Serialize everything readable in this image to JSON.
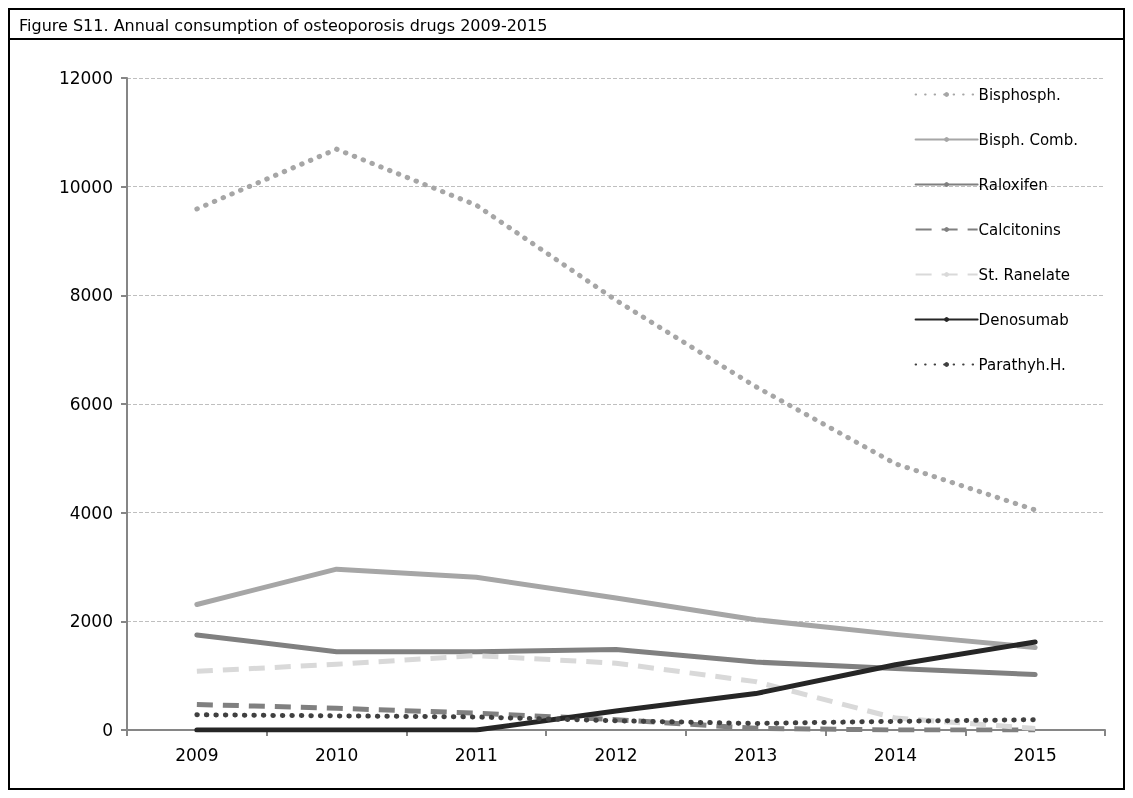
{
  "chart_data": {
    "type": "line",
    "title": "Figure S11. Annual consumption of osteoporosis drugs 2009-2015",
    "categories": [
      "2009",
      "2010",
      "2011",
      "2012",
      "2013",
      "2014",
      "2015"
    ],
    "series": [
      {
        "name": "Bisphosph.",
        "color": "#a6a6a6",
        "line_style": "dotted",
        "values": [
          9590,
          10690,
          9660,
          7910,
          6320,
          4900,
          4050
        ]
      },
      {
        "name": "Bisph. Comb.",
        "color": "#a6a6a6",
        "line_style": "solid",
        "values": [
          2310,
          2960,
          2810,
          2430,
          2030,
          1760,
          1520
        ]
      },
      {
        "name": "Raloxifen",
        "color": "#808080",
        "line_style": "solid",
        "values": [
          1750,
          1440,
          1440,
          1480,
          1250,
          1130,
          1020
        ]
      },
      {
        "name": "Calcitonins",
        "color": "#808080",
        "line_style": "dashed",
        "values": [
          470,
          400,
          310,
          190,
          30,
          0,
          0
        ]
      },
      {
        "name": "St. Ranelate",
        "color": "#d9d9d9",
        "line_style": "dashed",
        "values": [
          1080,
          1210,
          1370,
          1230,
          890,
          220,
          30
        ]
      },
      {
        "name": "Denosumab",
        "color": "#262626",
        "line_style": "solid",
        "values": [
          0,
          0,
          0,
          350,
          670,
          1200,
          1620
        ]
      },
      {
        "name": "Parathyh.H.",
        "color": "#404040",
        "line_style": "dotted",
        "values": [
          280,
          260,
          240,
          170,
          120,
          160,
          190
        ]
      }
    ],
    "ylim": [
      0,
      12000
    ],
    "yticks": [
      0,
      2000,
      4000,
      6000,
      8000,
      10000,
      12000
    ],
    "grid": "y",
    "legend": "top right",
    "marker": "none"
  }
}
